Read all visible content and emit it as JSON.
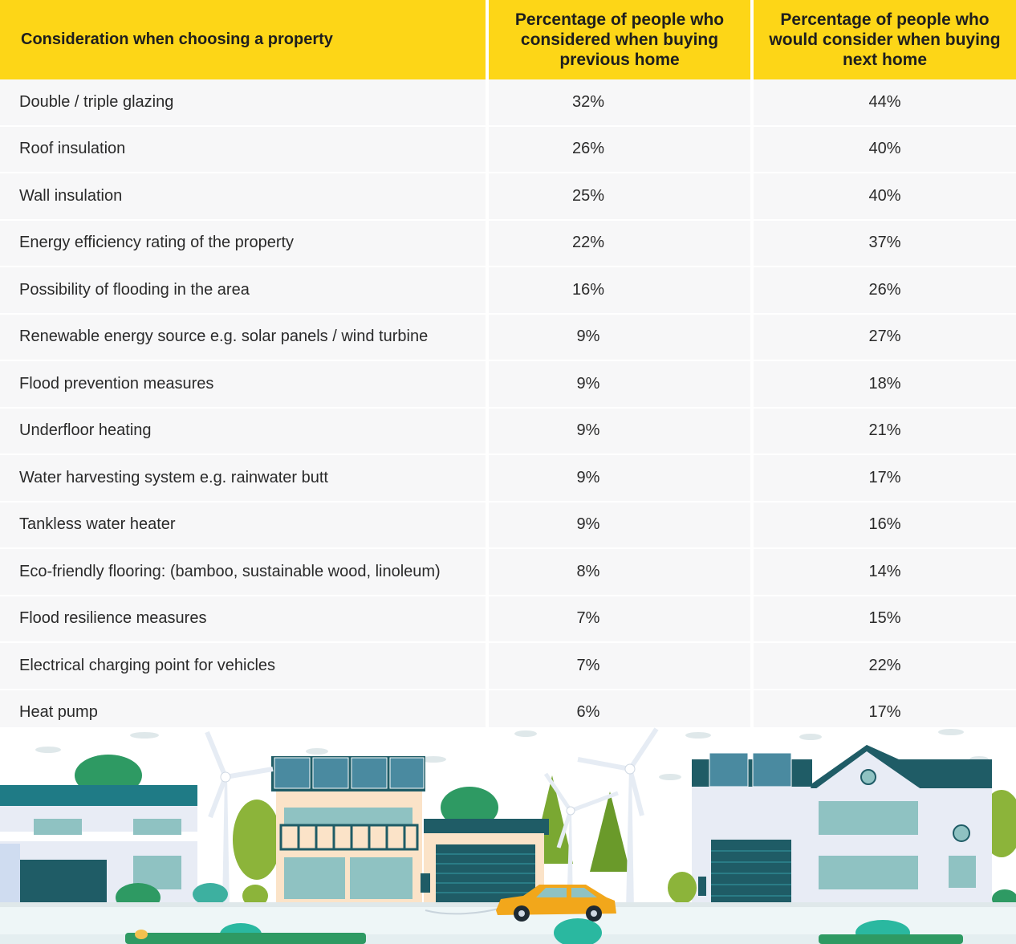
{
  "table": {
    "headers": {
      "consideration": "Consideration when choosing a property",
      "previous": "Percentage of people who considered when buying previous home",
      "next": "Percentage of people who would consider when buying next home"
    },
    "rows": [
      {
        "consideration": "Double / triple glazing",
        "previous": "32%",
        "next": "44%"
      },
      {
        "consideration": "Roof insulation",
        "previous": "26%",
        "next": "40%"
      },
      {
        "consideration": "Wall insulation",
        "previous": "25%",
        "next": "40%"
      },
      {
        "consideration": "Energy efficiency rating of the property",
        "previous": "22%",
        "next": "37%"
      },
      {
        "consideration": "Possibility of flooding in the area",
        "previous": "16%",
        "next": "26%"
      },
      {
        "consideration": "Renewable energy source e.g. solar panels / wind turbine",
        "previous": "9%",
        "next": "27%"
      },
      {
        "consideration": "Flood prevention measures",
        "previous": "9%",
        "next": "18%"
      },
      {
        "consideration": "Underfloor heating",
        "previous": "9%",
        "next": "21%"
      },
      {
        "consideration": "Water harvesting system e.g. rainwater butt",
        "previous": "9%",
        "next": "17%"
      },
      {
        "consideration": "Tankless water heater",
        "previous": "9%",
        "next": "16%"
      },
      {
        "consideration": "Eco-friendly flooring: (bamboo, sustainable wood, linoleum)",
        "previous": "8%",
        "next": "14%"
      },
      {
        "consideration": "Flood resilience measures",
        "previous": "7%",
        "next": "15%"
      },
      {
        "consideration": "Electrical charging point for vehicles",
        "previous": "7%",
        "next": "22%"
      },
      {
        "consideration": "Heat pump",
        "previous": "6%",
        "next": "17%"
      }
    ]
  },
  "colors": {
    "header_bg": "#fdd617",
    "row_bg": "#f7f7f8",
    "teal_dark": "#1f5c66",
    "teal": "#2a8c8c",
    "green": "#2e9a63",
    "olive": "#8cb43a",
    "sky": "#eef6f7"
  }
}
